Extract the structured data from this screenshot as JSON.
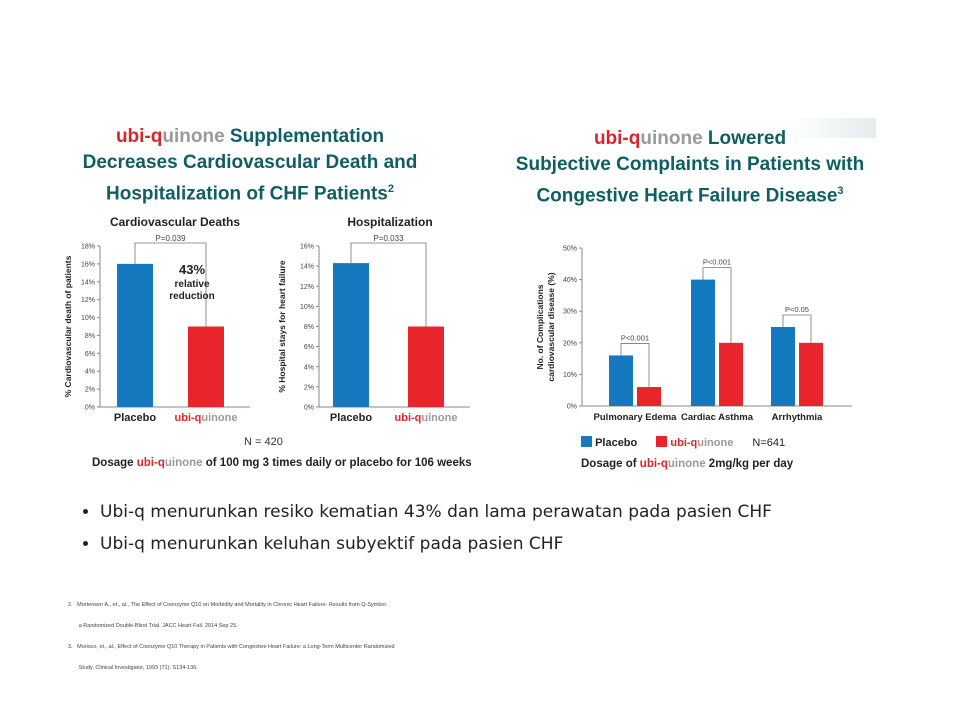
{
  "left_panel": {
    "title_brand_a": "ubi-q",
    "title_brand_b": "uinone",
    "title_line1_rest": " Supplementation",
    "title_line2": "Decreases Cardiovascular Death and",
    "title_line3": "Hospitalization of CHF Patients",
    "title_ref": "2",
    "n_label": "N = 420",
    "dosage_prefix": "Dosage ",
    "dosage_brand_a": "ubi-q",
    "dosage_brand_b": "uinone",
    "dosage_suffix": " of 100 mg 3 times daily or placebo for 106 weeks"
  },
  "right_panel": {
    "title_brand_a": "ubi-q",
    "title_brand_b": "uinone",
    "title_line1_rest": " Lowered",
    "title_line2": "Subjective Complaints in Patients with",
    "title_line3": "Congestive Heart Failure Disease",
    "title_ref": "3",
    "legend_placebo": "Placebo",
    "legend_brand_a": "ubi-q",
    "legend_brand_b": "uinone",
    "n_label": "N=641",
    "dosage_prefix": "Dosage of ",
    "dosage_brand_a": "ubi-q",
    "dosage_brand_b": "uinone",
    "dosage_suffix": " 2mg/kg per day"
  },
  "colors": {
    "placebo": "#1479bf",
    "ubiquinone": "#e8242c",
    "teal": "#0e5e63",
    "axis": "#888888"
  },
  "chart_data": [
    {
      "type": "bar",
      "title": "Cardiovascular Deaths",
      "ylabel": "% Cardiovascular death of patients",
      "categories": [
        "Placebo",
        "ubi-quinone"
      ],
      "values": [
        16,
        9
      ],
      "ylim": [
        0,
        18
      ],
      "yticks": [
        "0%",
        "2%",
        "4%",
        "6%",
        "8%",
        "10%",
        "12%",
        "14%",
        "16%",
        "18%"
      ],
      "p_value": "P=0.039",
      "annotation": [
        "43%",
        "relative",
        "reduction"
      ]
    },
    {
      "type": "bar",
      "title": "Hospitalization",
      "ylabel": "% Hospital stays for heart failure",
      "categories": [
        "Placebo",
        "ubi-quinone"
      ],
      "values": [
        14.3,
        8
      ],
      "ylim": [
        0,
        16
      ],
      "yticks": [
        "0%",
        "2%",
        "4%",
        "6%",
        "8%",
        "10%",
        "12%",
        "14%",
        "16%"
      ],
      "p_value": "P=0.033"
    },
    {
      "type": "bar",
      "ylabel": "No. of Complications cardiovascular disease (%)",
      "ylabel_lines": [
        "No. of Complications",
        "cardiovascular disease (%)"
      ],
      "categories": [
        "Pulmonary Edema",
        "Cardiac Asthma",
        "Arrhythmia"
      ],
      "series": [
        {
          "name": "Placebo",
          "values": [
            16,
            40,
            25
          ]
        },
        {
          "name": "ubi-quinone",
          "values": [
            6,
            20,
            20
          ]
        }
      ],
      "ylim": [
        0,
        50
      ],
      "yticks": [
        "0%",
        "10%",
        "20%",
        "30%",
        "40%",
        "50%"
      ],
      "p_values": [
        "P<0.001",
        "P<0.001",
        "P<0.05"
      ],
      "legend": "bottom-left"
    }
  ],
  "bullets": [
    "Ubi-q menurunkan resiko kematian 43% dan lama perawatan pada pasien CHF",
    "Ubi-q menurunkan keluhan subyektif pada pasien CHF"
  ],
  "references": [
    "2.   Mortensen A., et., al., The Effect of Coenzyme Q10 on Morbidity and Mortality in Chronic Heart Failure- Results from Q-Symbio:",
    "       a Randomized Double-Blind Trial. JACC Heart Fail. 2014 Sep 25.",
    "3.   Morisco, et., al., Effect of Coenzyme Q10 Therapy in Patients with Congestive Heart Failure: a Long-Term Multicenter Randomized",
    "       Study, Clinical Investigator, 1993 (71): S134-136."
  ]
}
